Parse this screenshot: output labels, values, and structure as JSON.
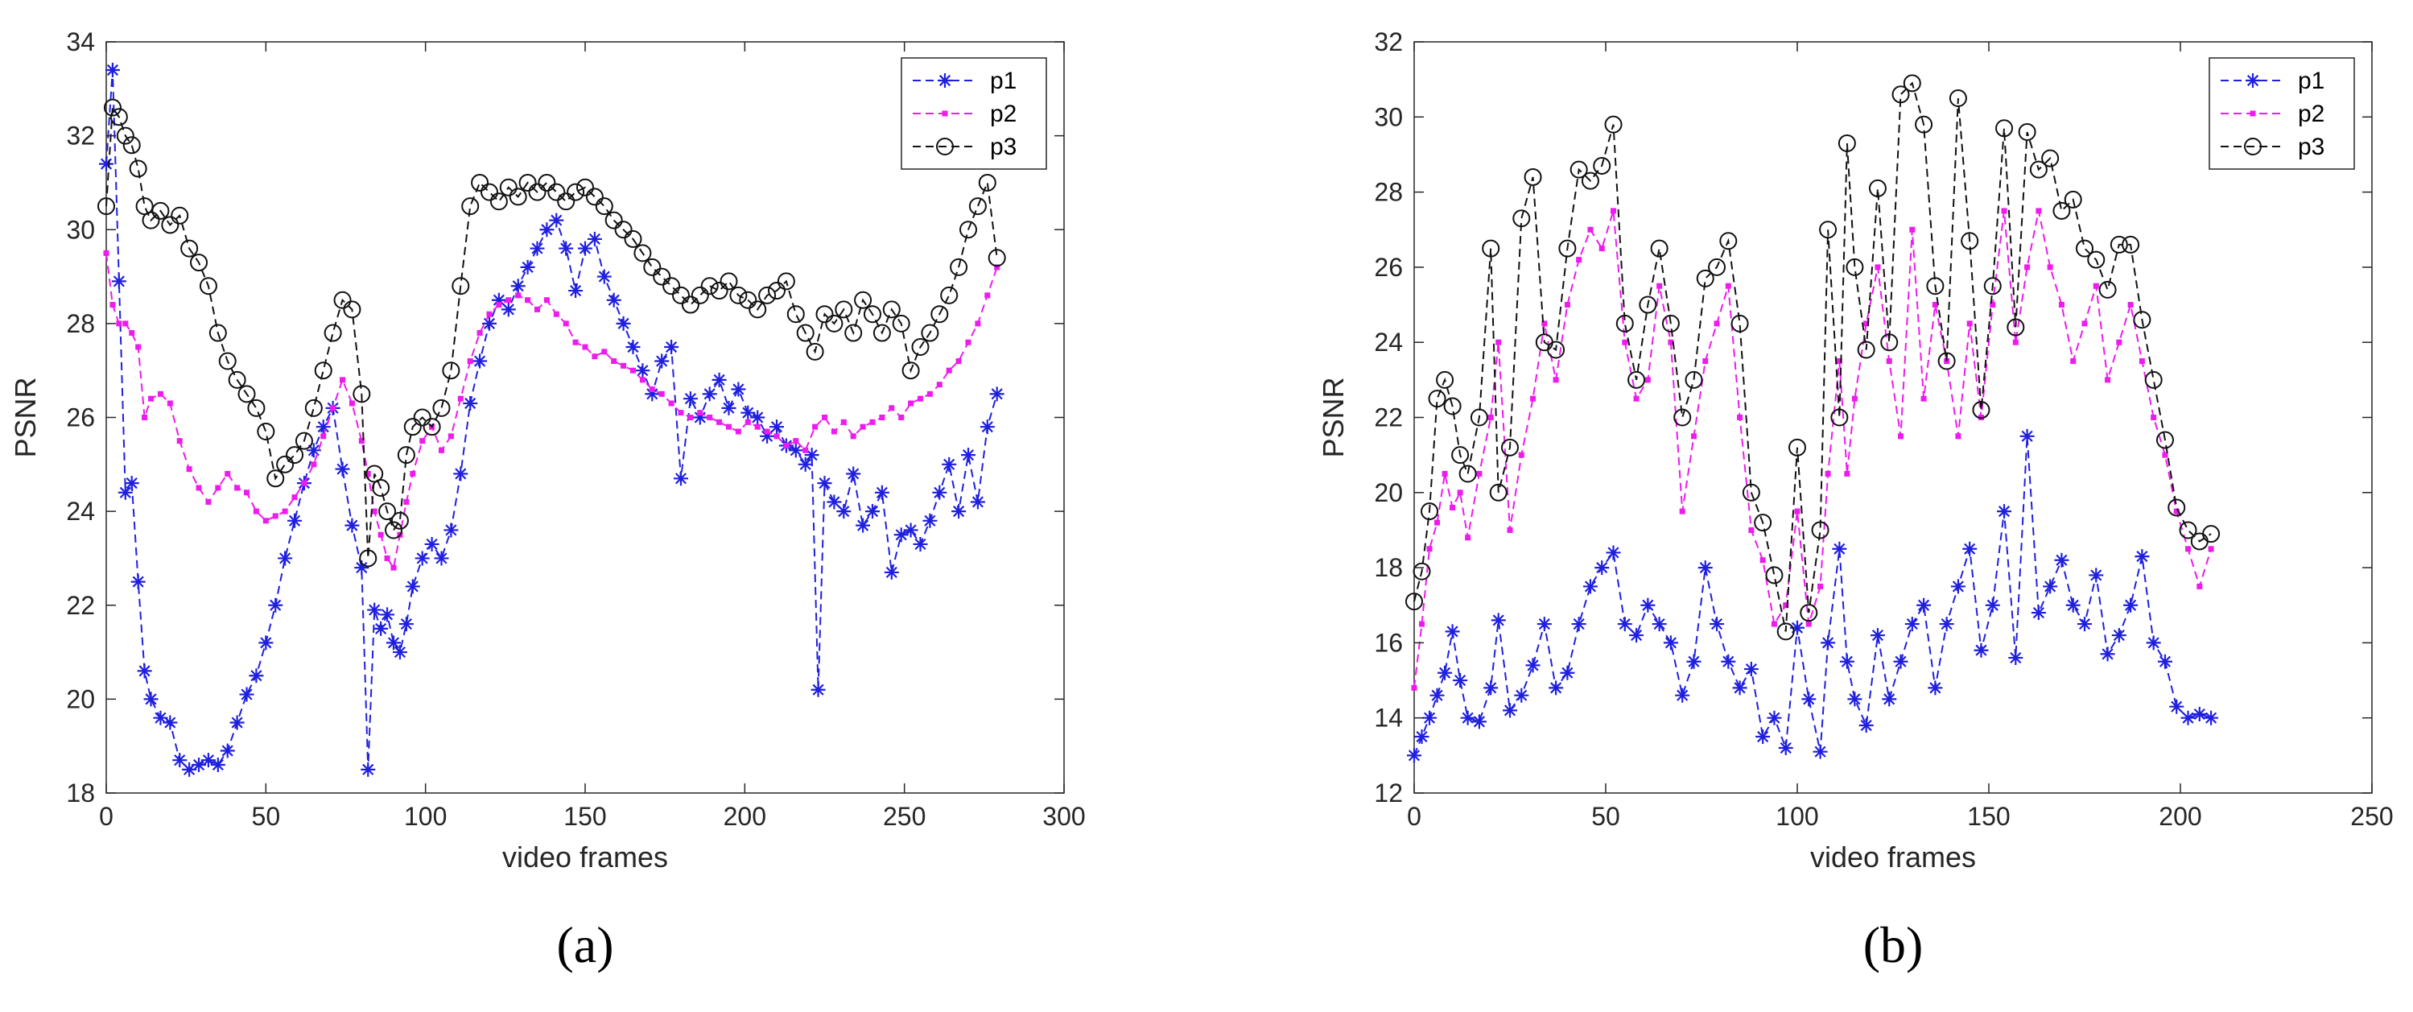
{
  "colors": {
    "p1": "#1f1fe0",
    "p2": "#ee1aee",
    "p3": "#111111",
    "axis": "#262626"
  },
  "chart_data": [
    {
      "type": "line",
      "panel_label": "(a)",
      "xlabel": "video frames",
      "ylabel": "PSNR",
      "xlim": [
        0,
        300
      ],
      "ylim": [
        18,
        34
      ],
      "xticks": [
        0,
        50,
        100,
        150,
        200,
        250,
        300
      ],
      "yticks": [
        18,
        20,
        22,
        24,
        26,
        28,
        30,
        32,
        34
      ],
      "legend_position": "top-right",
      "series": [
        {
          "name": "p1",
          "marker": "asterisk",
          "x": [
            0,
            2,
            4,
            6,
            8,
            10,
            12,
            14,
            17,
            20,
            23,
            26,
            29,
            32,
            35,
            38,
            41,
            44,
            47,
            50,
            53,
            56,
            59,
            62,
            65,
            68,
            71,
            74,
            77,
            80,
            82,
            84,
            86,
            88,
            90,
            92,
            94,
            96,
            99,
            102,
            105,
            108,
            111,
            114,
            117,
            120,
            123,
            126,
            129,
            132,
            135,
            138,
            141,
            144,
            147,
            150,
            153,
            156,
            159,
            162,
            165,
            168,
            171,
            174,
            177,
            180,
            183,
            186,
            189,
            192,
            195,
            198,
            201,
            204,
            207,
            210,
            213,
            216,
            219,
            221,
            223,
            225,
            228,
            231,
            234,
            237,
            240,
            243,
            246,
            249,
            252,
            255,
            258,
            261,
            264,
            267,
            270,
            273,
            276,
            279
          ],
          "y": [
            31.4,
            33.4,
            28.9,
            24.4,
            24.6,
            22.5,
            20.6,
            20.0,
            19.6,
            19.5,
            18.7,
            18.5,
            18.6,
            18.7,
            18.6,
            18.9,
            19.5,
            20.1,
            20.5,
            21.2,
            22.0,
            23.0,
            23.8,
            24.6,
            25.3,
            25.8,
            26.2,
            24.9,
            23.7,
            22.8,
            18.5,
            21.9,
            21.5,
            21.8,
            21.2,
            21.0,
            21.6,
            22.4,
            23.0,
            23.3,
            23.0,
            23.6,
            24.8,
            26.3,
            27.2,
            28.0,
            28.5,
            28.3,
            28.8,
            29.2,
            29.6,
            30.0,
            30.2,
            29.6,
            28.7,
            29.6,
            29.8,
            29.0,
            28.5,
            28.0,
            27.5,
            27.0,
            26.5,
            27.2,
            27.5,
            24.7,
            26.4,
            26.0,
            26.5,
            26.8,
            26.2,
            26.6,
            26.1,
            26.0,
            25.6,
            25.8,
            25.4,
            25.3,
            25.0,
            25.2,
            20.2,
            24.6,
            24.2,
            24.0,
            24.8,
            23.7,
            24.0,
            24.4,
            22.7,
            23.5,
            23.6,
            23.3,
            23.8,
            24.4,
            25.0,
            24.0,
            25.2,
            24.2,
            25.8,
            26.5
          ]
        },
        {
          "name": "p2",
          "marker": "dot",
          "x": [
            0,
            2,
            4,
            6,
            8,
            10,
            12,
            14,
            17,
            20,
            23,
            26,
            29,
            32,
            35,
            38,
            41,
            44,
            47,
            50,
            53,
            56,
            59,
            62,
            65,
            68,
            71,
            74,
            77,
            80,
            82,
            84,
            86,
            88,
            90,
            92,
            94,
            96,
            99,
            102,
            105,
            108,
            111,
            114,
            117,
            120,
            123,
            126,
            129,
            132,
            135,
            138,
            141,
            144,
            147,
            150,
            153,
            156,
            159,
            162,
            165,
            168,
            171,
            174,
            177,
            180,
            183,
            186,
            189,
            192,
            195,
            198,
            201,
            204,
            207,
            210,
            213,
            216,
            219,
            222,
            225,
            228,
            231,
            234,
            237,
            240,
            243,
            246,
            249,
            252,
            255,
            258,
            261,
            264,
            267,
            270,
            273,
            276,
            279
          ],
          "y": [
            29.5,
            28.4,
            28.0,
            28.0,
            27.8,
            27.5,
            26.0,
            26.4,
            26.5,
            26.3,
            25.5,
            24.9,
            24.5,
            24.2,
            24.5,
            24.8,
            24.5,
            24.4,
            24.0,
            23.8,
            23.9,
            24.0,
            24.3,
            24.6,
            25.0,
            25.6,
            26.2,
            26.8,
            26.3,
            25.5,
            24.8,
            24.0,
            23.5,
            23.0,
            22.8,
            23.5,
            24.2,
            24.8,
            25.5,
            25.8,
            25.3,
            25.6,
            26.4,
            27.2,
            27.8,
            28.2,
            28.4,
            28.5,
            28.6,
            28.5,
            28.3,
            28.5,
            28.2,
            28.0,
            27.6,
            27.5,
            27.3,
            27.4,
            27.2,
            27.1,
            27.0,
            26.8,
            26.6,
            26.5,
            26.3,
            26.1,
            26.0,
            26.1,
            26.0,
            25.9,
            25.8,
            25.7,
            25.9,
            25.8,
            25.7,
            25.6,
            25.4,
            25.5,
            25.3,
            25.8,
            26.0,
            25.7,
            25.9,
            25.6,
            25.8,
            25.9,
            26.0,
            26.2,
            26.0,
            26.3,
            26.4,
            26.5,
            26.7,
            27.0,
            27.2,
            27.6,
            28.0,
            28.6,
            29.2
          ]
        },
        {
          "name": "p3",
          "marker": "circle",
          "x": [
            0,
            2,
            4,
            6,
            8,
            10,
            12,
            14,
            17,
            20,
            23,
            26,
            29,
            32,
            35,
            38,
            41,
            44,
            47,
            50,
            53,
            56,
            59,
            62,
            65,
            68,
            71,
            74,
            77,
            80,
            82,
            84,
            86,
            88,
            90,
            92,
            94,
            96,
            99,
            102,
            105,
            108,
            111,
            114,
            117,
            120,
            123,
            126,
            129,
            132,
            135,
            138,
            141,
            144,
            147,
            150,
            153,
            156,
            159,
            162,
            165,
            168,
            171,
            174,
            177,
            180,
            183,
            186,
            189,
            192,
            195,
            198,
            201,
            204,
            207,
            210,
            213,
            216,
            219,
            222,
            225,
            228,
            231,
            234,
            237,
            240,
            243,
            246,
            249,
            252,
            255,
            258,
            261,
            264,
            267,
            270,
            273,
            276,
            279
          ],
          "y": [
            30.5,
            32.6,
            32.4,
            32.0,
            31.8,
            31.3,
            30.5,
            30.2,
            30.4,
            30.1,
            30.3,
            29.6,
            29.3,
            28.8,
            27.8,
            27.2,
            26.8,
            26.5,
            26.2,
            25.7,
            24.7,
            25.0,
            25.2,
            25.5,
            26.2,
            27.0,
            27.8,
            28.5,
            28.3,
            26.5,
            23.0,
            24.8,
            24.5,
            24.0,
            23.6,
            23.8,
            25.2,
            25.8,
            26.0,
            25.8,
            26.2,
            27.0,
            28.8,
            30.5,
            31.0,
            30.8,
            30.6,
            30.9,
            30.7,
            31.0,
            30.8,
            31.0,
            30.8,
            30.6,
            30.8,
            30.9,
            30.7,
            30.5,
            30.2,
            30.0,
            29.8,
            29.5,
            29.2,
            29.0,
            28.8,
            28.6,
            28.4,
            28.6,
            28.8,
            28.7,
            28.9,
            28.6,
            28.5,
            28.3,
            28.6,
            28.7,
            28.9,
            28.2,
            27.8,
            27.4,
            28.2,
            28.0,
            28.3,
            27.8,
            28.5,
            28.2,
            27.8,
            28.3,
            28.0,
            27.0,
            27.5,
            27.8,
            28.2,
            28.6,
            29.2,
            30.0,
            30.5,
            31.0,
            29.4
          ]
        }
      ]
    },
    {
      "type": "line",
      "panel_label": "(b)",
      "xlabel": "video frames",
      "ylabel": "PSNR",
      "xlim": [
        0,
        250
      ],
      "ylim": [
        12,
        32
      ],
      "xticks": [
        0,
        50,
        100,
        150,
        200,
        250
      ],
      "yticks": [
        12,
        14,
        16,
        18,
        20,
        22,
        24,
        26,
        28,
        30,
        32
      ],
      "legend_position": "top-right",
      "series": [
        {
          "name": "p1",
          "marker": "asterisk",
          "x": [
            0,
            2,
            4,
            6,
            8,
            10,
            12,
            14,
            17,
            20,
            22,
            25,
            28,
            31,
            34,
            37,
            40,
            43,
            46,
            49,
            52,
            55,
            58,
            61,
            64,
            67,
            70,
            73,
            76,
            79,
            82,
            85,
            88,
            91,
            94,
            97,
            100,
            103,
            106,
            108,
            111,
            113,
            115,
            118,
            121,
            124,
            127,
            130,
            133,
            136,
            139,
            142,
            145,
            148,
            151,
            154,
            157,
            160,
            163,
            166,
            169,
            172,
            175,
            178,
            181,
            184,
            187,
            190,
            193,
            196,
            199,
            202,
            205,
            208
          ],
          "y": [
            13.0,
            13.5,
            14.0,
            14.6,
            15.2,
            16.3,
            15.0,
            14.0,
            13.9,
            14.8,
            16.6,
            14.2,
            14.6,
            15.4,
            16.5,
            14.8,
            15.2,
            16.5,
            17.5,
            18.0,
            18.4,
            16.5,
            16.2,
            17.0,
            16.5,
            16.0,
            14.6,
            15.5,
            18.0,
            16.5,
            15.5,
            14.8,
            15.3,
            13.5,
            14.0,
            13.2,
            16.4,
            14.5,
            13.1,
            16.0,
            18.5,
            15.5,
            14.5,
            13.8,
            16.2,
            14.5,
            15.5,
            16.5,
            17.0,
            14.8,
            16.5,
            17.5,
            18.5,
            15.8,
            17.0,
            19.5,
            15.6,
            21.5,
            16.8,
            17.5,
            18.2,
            17.0,
            16.5,
            17.8,
            15.7,
            16.2,
            17.0,
            18.3,
            16.0,
            15.5,
            14.3,
            14.0,
            14.1,
            14.0
          ]
        },
        {
          "name": "p2",
          "marker": "dot",
          "x": [
            0,
            2,
            4,
            6,
            8,
            10,
            12,
            14,
            17,
            20,
            22,
            25,
            28,
            31,
            34,
            37,
            40,
            43,
            46,
            49,
            52,
            55,
            58,
            61,
            64,
            67,
            70,
            73,
            76,
            79,
            82,
            85,
            88,
            91,
            94,
            97,
            100,
            103,
            106,
            108,
            111,
            113,
            115,
            118,
            121,
            124,
            127,
            130,
            133,
            136,
            139,
            142,
            145,
            148,
            151,
            154,
            157,
            160,
            163,
            166,
            169,
            172,
            175,
            178,
            181,
            184,
            187,
            190,
            193,
            196,
            199,
            202,
            205,
            208
          ],
          "y": [
            14.8,
            16.5,
            18.5,
            19.2,
            20.5,
            19.6,
            20.0,
            18.8,
            20.5,
            22.0,
            24.0,
            19.0,
            21.0,
            22.5,
            24.5,
            23.0,
            25.0,
            26.2,
            27.0,
            26.5,
            27.5,
            24.0,
            22.5,
            23.0,
            25.5,
            24.0,
            19.5,
            21.5,
            23.5,
            24.5,
            25.5,
            22.0,
            19.0,
            18.2,
            16.5,
            17.0,
            19.5,
            16.5,
            17.5,
            20.5,
            23.5,
            20.5,
            22.5,
            24.5,
            26.0,
            23.5,
            21.5,
            27.0,
            22.5,
            25.0,
            23.5,
            21.5,
            24.5,
            22.0,
            25.0,
            27.5,
            24.0,
            26.0,
            27.5,
            26.0,
            25.0,
            23.5,
            24.5,
            25.5,
            23.0,
            24.0,
            25.0,
            23.5,
            22.0,
            21.0,
            19.5,
            18.5,
            17.5,
            18.5
          ]
        },
        {
          "name": "p3",
          "marker": "circle",
          "x": [
            0,
            2,
            4,
            6,
            8,
            10,
            12,
            14,
            17,
            20,
            22,
            25,
            28,
            31,
            34,
            37,
            40,
            43,
            46,
            49,
            52,
            55,
            58,
            61,
            64,
            67,
            70,
            73,
            76,
            79,
            82,
            85,
            88,
            91,
            94,
            97,
            100,
            103,
            106,
            108,
            111,
            113,
            115,
            118,
            121,
            124,
            127,
            130,
            133,
            136,
            139,
            142,
            145,
            148,
            151,
            154,
            157,
            160,
            163,
            166,
            169,
            172,
            175,
            178,
            181,
            184,
            187,
            190,
            193,
            196,
            199,
            202,
            205,
            208
          ],
          "y": [
            17.1,
            17.9,
            19.5,
            22.5,
            23.0,
            22.3,
            21.0,
            20.5,
            22.0,
            26.5,
            20.0,
            21.2,
            27.3,
            28.4,
            24.0,
            23.8,
            26.5,
            28.6,
            28.3,
            28.7,
            29.8,
            24.5,
            23.0,
            25.0,
            26.5,
            24.5,
            22.0,
            23.0,
            25.7,
            26.0,
            26.7,
            24.5,
            20.0,
            19.2,
            17.8,
            16.3,
            21.2,
            16.8,
            19.0,
            27.0,
            22.0,
            29.3,
            26.0,
            23.8,
            28.1,
            24.0,
            30.6,
            30.9,
            29.8,
            25.5,
            23.5,
            30.5,
            26.7,
            22.2,
            25.5,
            29.7,
            24.4,
            29.6,
            28.6,
            28.9,
            27.5,
            27.8,
            26.5,
            26.2,
            25.4,
            26.6,
            26.6,
            24.6,
            23.0,
            21.4,
            19.6,
            19.0,
            18.7,
            18.9
          ]
        }
      ]
    }
  ]
}
